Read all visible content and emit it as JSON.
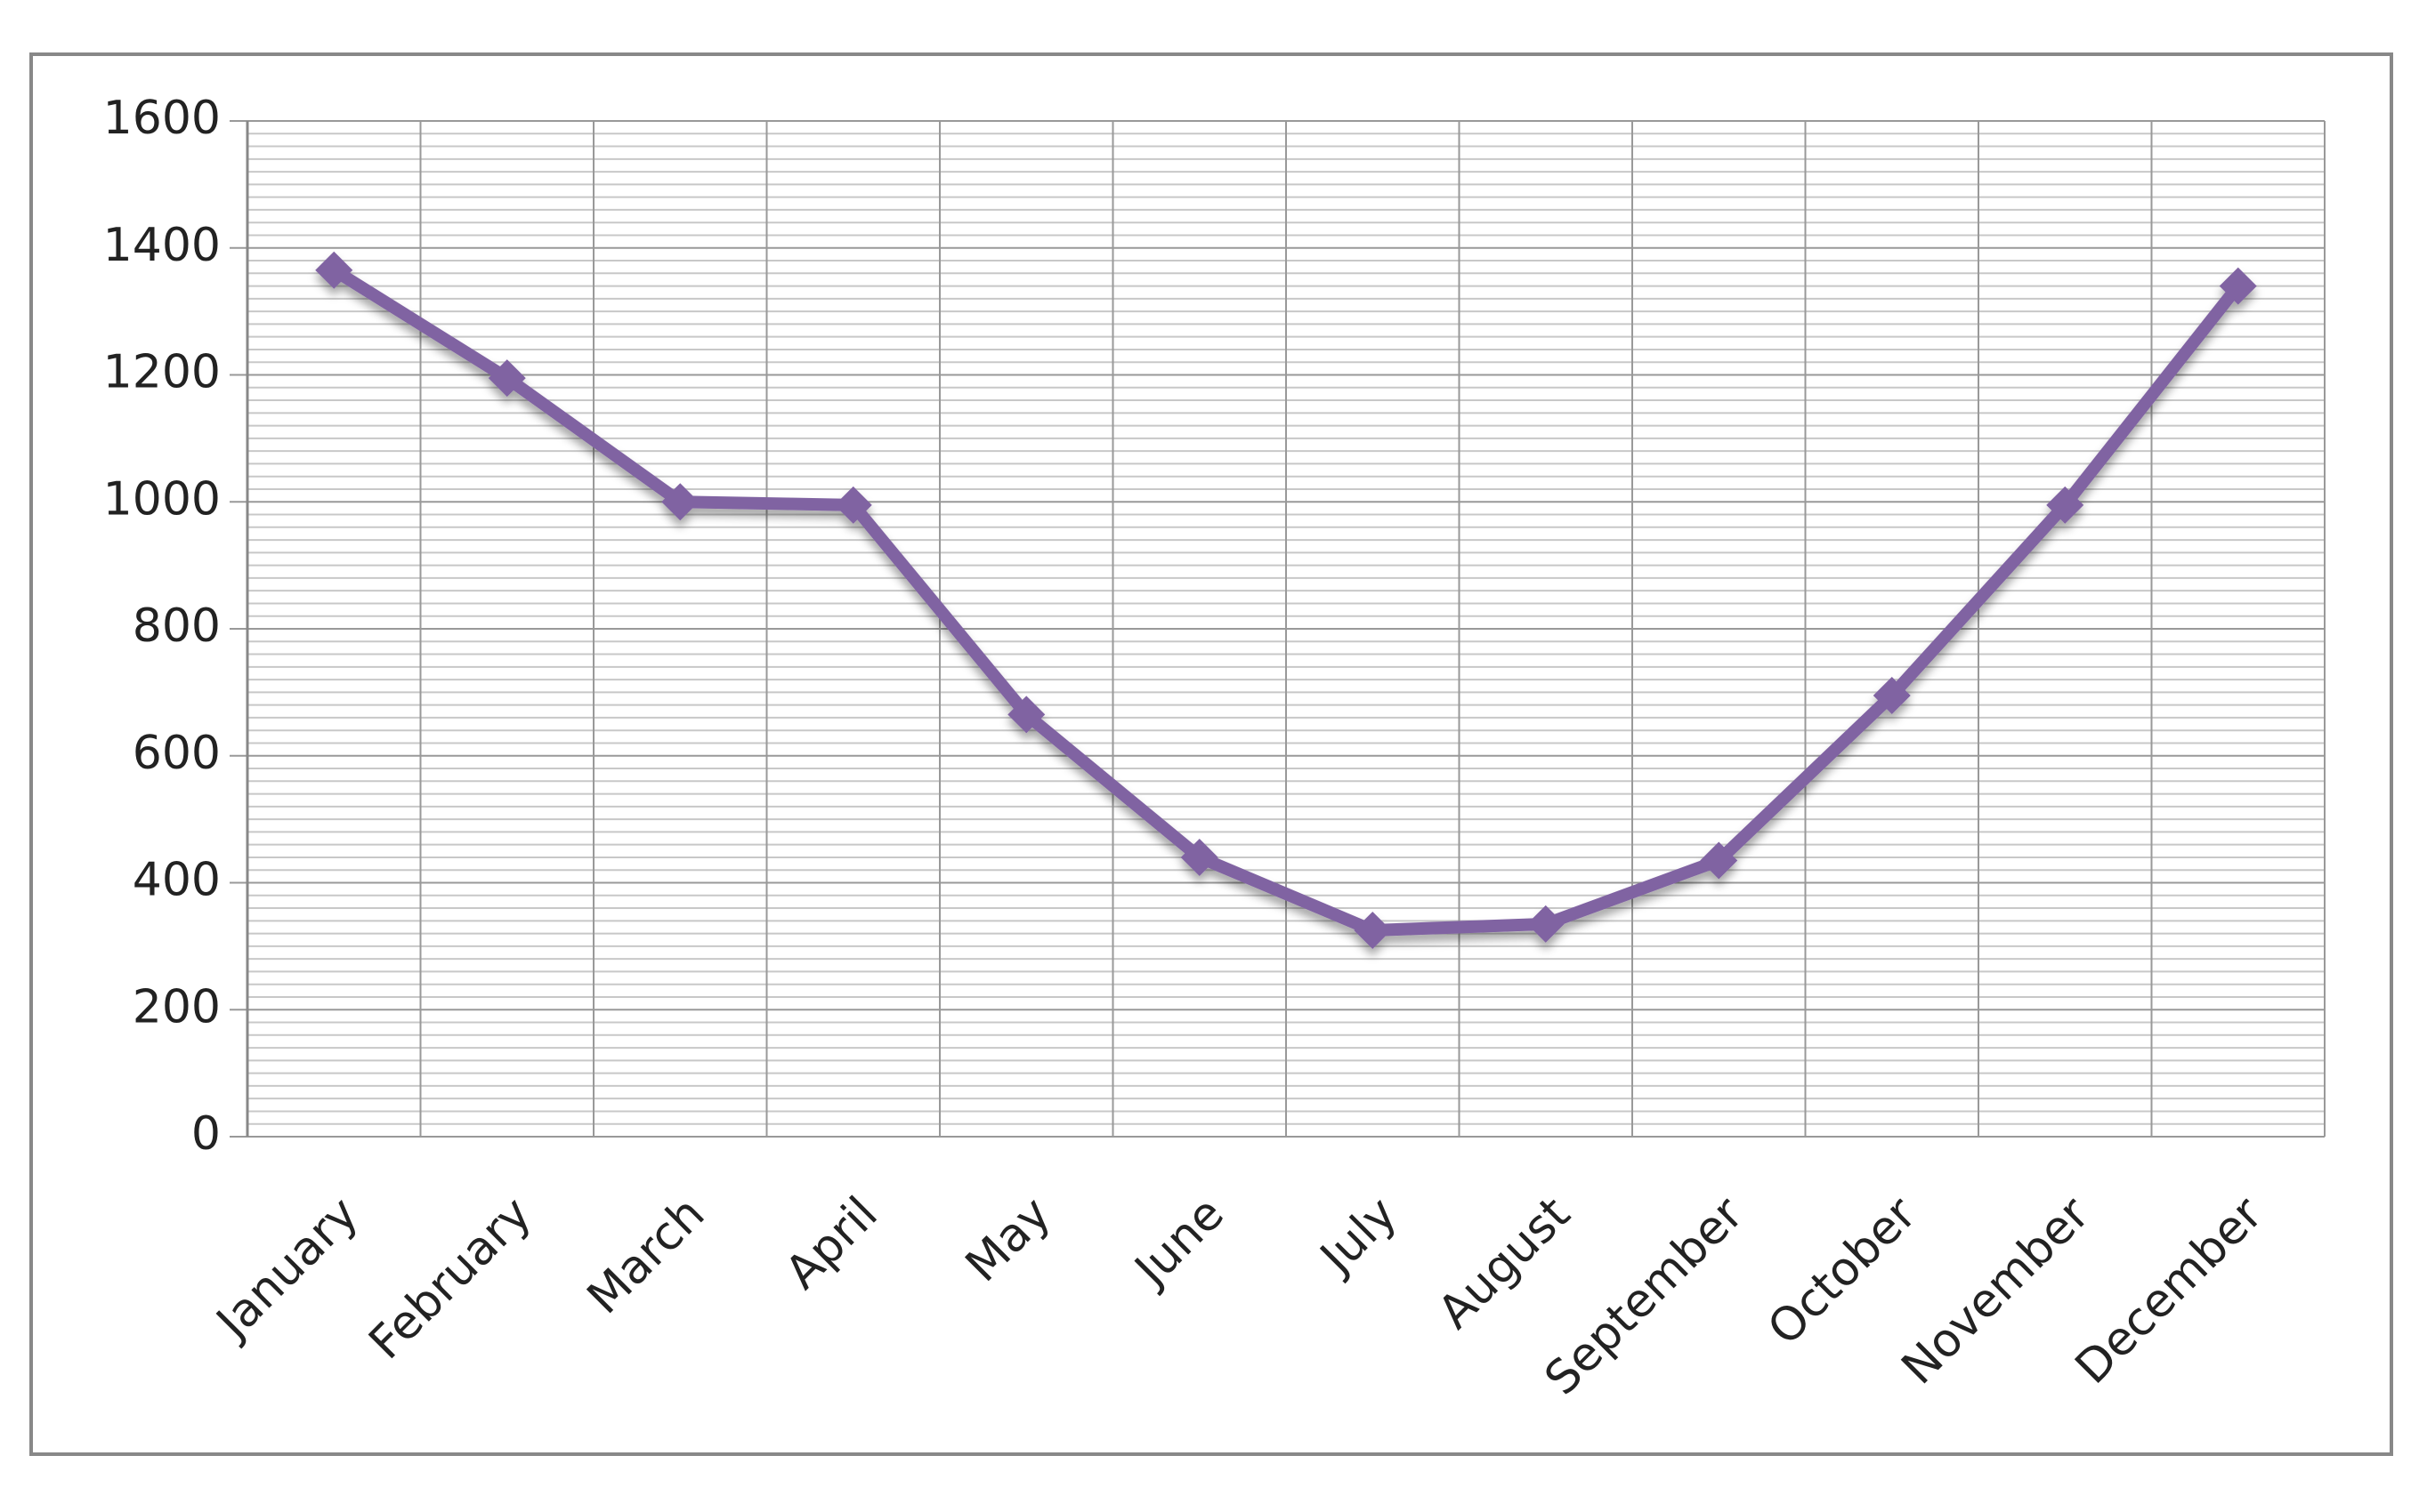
{
  "chart_data": {
    "type": "line",
    "categories": [
      "January",
      "February",
      "March",
      "April",
      "May",
      "June",
      "July",
      "August",
      "September",
      "October",
      "November",
      "December"
    ],
    "series": [
      {
        "color": "#8064a2",
        "values": [
          1365,
          1195,
          1000,
          995,
          665,
          440,
          325,
          335,
          435,
          695,
          995,
          1340
        ]
      }
    ],
    "ylim": [
      0,
      1600
    ],
    "yticks": [
      0,
      200,
      400,
      600,
      800,
      1000,
      1200,
      1400,
      1600
    ],
    "grid": true,
    "minor_grid": true,
    "marker": "diamond"
  }
}
